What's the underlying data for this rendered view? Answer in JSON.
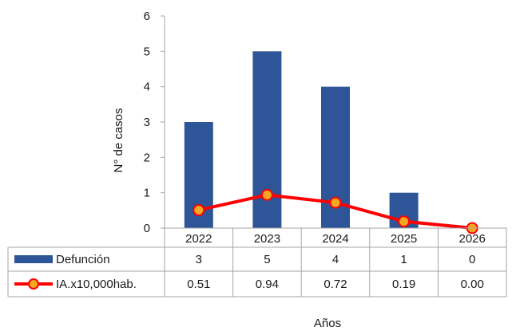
{
  "chart_data": {
    "type": "bar",
    "categories": [
      "2022",
      "2023",
      "2024",
      "2025",
      "2026"
    ],
    "xlabel": "Años",
    "ylabel": "N° de casos",
    "ylim": [
      0,
      6
    ],
    "yticks": [
      0,
      1,
      2,
      3,
      4,
      5,
      6
    ],
    "series": [
      {
        "name": "Defunción",
        "type": "bar",
        "color": "#2e5597",
        "values": [
          3,
          5,
          4,
          1,
          0
        ],
        "labels": [
          "3",
          "5",
          "4",
          "1",
          "0"
        ]
      },
      {
        "name": "IA.x10,000hab.",
        "type": "line",
        "color": "#ff0000",
        "marker_color": "#f5a623",
        "values": [
          0.51,
          0.94,
          0.72,
          0.19,
          0.0
        ],
        "labels": [
          "0.51",
          "0.94",
          "0.72",
          "0.19",
          "0.00"
        ]
      }
    ],
    "legend_position": "data-table",
    "grid": false
  }
}
